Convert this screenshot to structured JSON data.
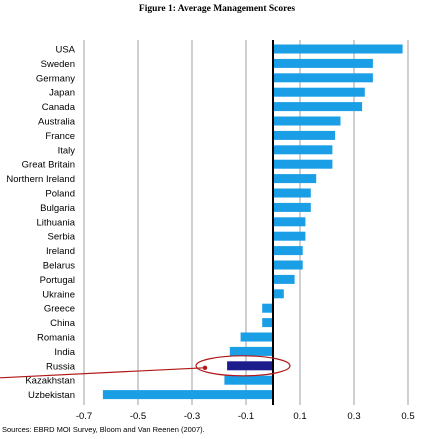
{
  "figure_title": "Figure 1: Average Management Scores",
  "source": "Sources: EBRD MOI Survey, Bloom and Van Reenen (2007).",
  "colors": {
    "bar": "#1a9ee6",
    "highlight_bar": "#1c1c8c",
    "annotation": "#b01818",
    "grid": "#888888",
    "zero_line": "#000000"
  },
  "chart_data": {
    "type": "bar",
    "orientation": "horizontal",
    "title": "Figure 1: Average Management Scores",
    "xlabel": "",
    "ylabel": "",
    "xlim": [
      -0.7,
      0.5
    ],
    "xticks": [
      -0.7,
      -0.5,
      -0.3,
      -0.1,
      0.1,
      0.3,
      0.5
    ],
    "xtick_labels": [
      "-0.7",
      "-0.5",
      "-0.3",
      "-0.1",
      "0.1",
      "0.3",
      "0.5"
    ],
    "grid": true,
    "highlight": "Russia",
    "highlight_annotation": "ellipse with arrow",
    "categories": [
      "USA",
      "Sweden",
      "Germany",
      "Japan",
      "Canada",
      "Australia",
      "France",
      "Italy",
      "Great Britain",
      "Northern Ireland",
      "Poland",
      "Bulgaria",
      "Lithuania",
      "Serbia",
      "Ireland",
      "Belarus",
      "Portugal",
      "Ukraine",
      "Greece",
      "China",
      "Romania",
      "India",
      "Russia",
      "Kazakhstan",
      "Uzbekistan"
    ],
    "values": [
      0.48,
      0.37,
      0.37,
      0.34,
      0.33,
      0.25,
      0.23,
      0.22,
      0.22,
      0.16,
      0.14,
      0.14,
      0.12,
      0.12,
      0.11,
      0.11,
      0.08,
      0.04,
      -0.04,
      -0.04,
      -0.12,
      -0.16,
      -0.17,
      -0.18,
      -0.63
    ]
  }
}
